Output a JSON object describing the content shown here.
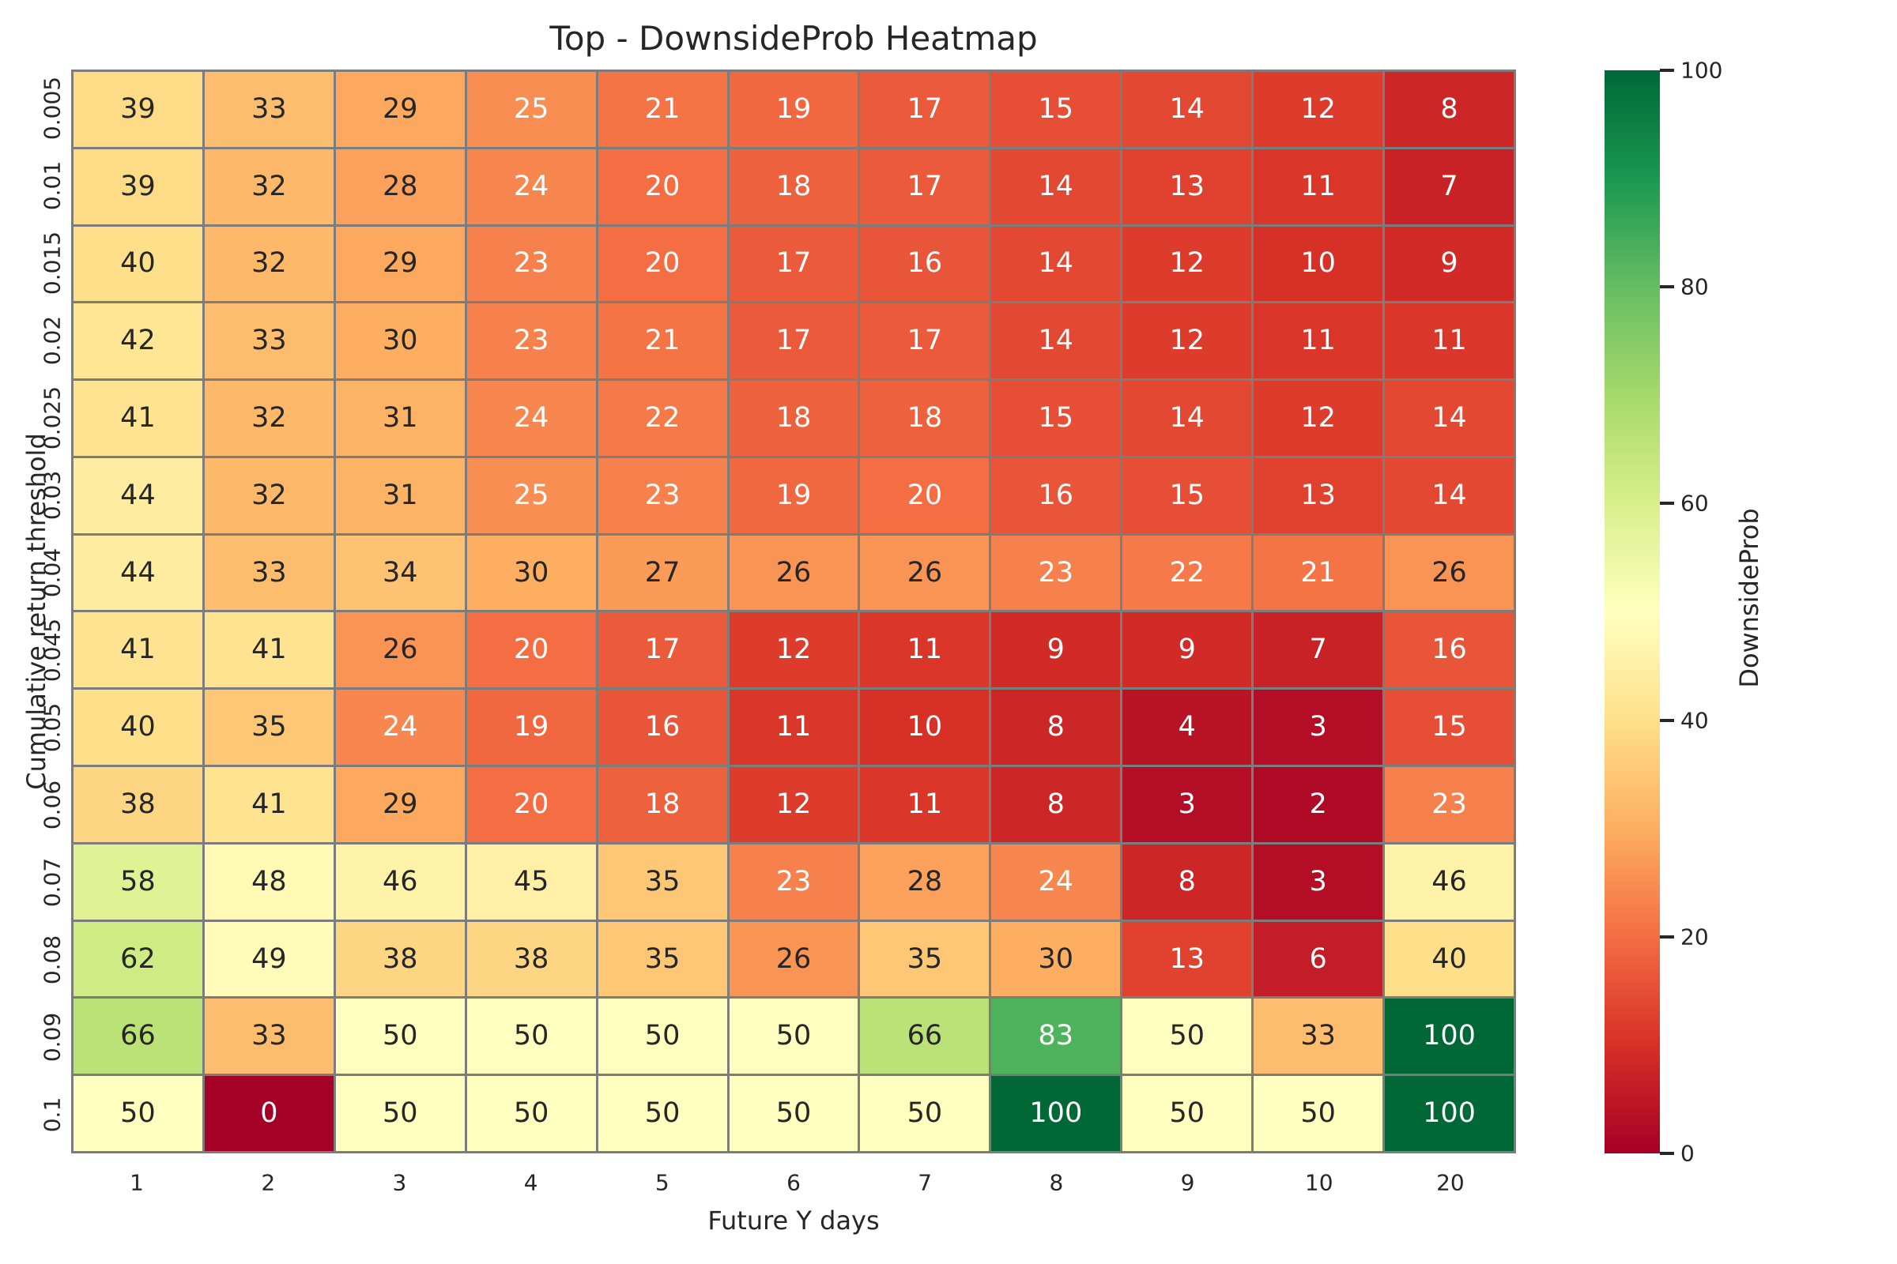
{
  "chart_data": {
    "type": "heatmap",
    "title": "Top - DownsideProb Heatmap",
    "xlabel": "Future Y days",
    "ylabel": "Cumulative return threshold",
    "colorbar_label": "DownsideProb",
    "colorbar_ticks": [
      0,
      20,
      40,
      60,
      80,
      100
    ],
    "vmin": 0,
    "vmax": 100,
    "x_categories": [
      "1",
      "2",
      "3",
      "4",
      "5",
      "6",
      "7",
      "8",
      "9",
      "10",
      "20"
    ],
    "y_categories": [
      "0.005",
      "0.01",
      "0.015",
      "0.02",
      "0.025",
      "0.03",
      "0.04",
      "0.045",
      "0.05",
      "0.06",
      "0.07",
      "0.08",
      "0.09",
      "0.1"
    ],
    "values": [
      [
        39,
        33,
        29,
        25,
        21,
        19,
        17,
        15,
        14,
        12,
        8
      ],
      [
        39,
        32,
        28,
        24,
        20,
        18,
        17,
        14,
        13,
        11,
        7
      ],
      [
        40,
        32,
        29,
        23,
        20,
        17,
        16,
        14,
        12,
        10,
        9
      ],
      [
        42,
        33,
        30,
        23,
        21,
        17,
        17,
        14,
        12,
        11,
        11
      ],
      [
        41,
        32,
        31,
        24,
        22,
        18,
        18,
        15,
        14,
        12,
        14
      ],
      [
        44,
        32,
        31,
        25,
        23,
        19,
        20,
        16,
        15,
        13,
        14
      ],
      [
        44,
        33,
        34,
        30,
        27,
        26,
        26,
        23,
        22,
        21,
        26
      ],
      [
        41,
        41,
        26,
        20,
        17,
        12,
        11,
        9,
        9,
        7,
        16
      ],
      [
        40,
        35,
        24,
        19,
        16,
        11,
        10,
        8,
        4,
        3,
        15
      ],
      [
        38,
        41,
        29,
        20,
        18,
        12,
        11,
        8,
        3,
        2,
        23
      ],
      [
        58,
        48,
        46,
        45,
        35,
        23,
        28,
        24,
        8,
        3,
        46
      ],
      [
        62,
        49,
        38,
        38,
        35,
        26,
        35,
        30,
        13,
        6,
        40
      ],
      [
        66,
        33,
        50,
        50,
        50,
        50,
        66,
        83,
        50,
        33,
        100
      ],
      [
        50,
        0,
        50,
        50,
        50,
        50,
        50,
        100,
        50,
        50,
        100
      ]
    ],
    "colormap": {
      "name": "RdYlGn",
      "stops": [
        "#a50026",
        "#d73027",
        "#f46d43",
        "#fdae61",
        "#fee08b",
        "#ffffbf",
        "#d9ef8b",
        "#a6d96a",
        "#66bd63",
        "#1a9850",
        "#006837"
      ]
    },
    "grid_color": "#7c7c7c",
    "text_color_dark": "#262626",
    "text_color_light": "#ffffff",
    "legend_position": "right",
    "grid": "cell-borders",
    "annotations": true
  }
}
